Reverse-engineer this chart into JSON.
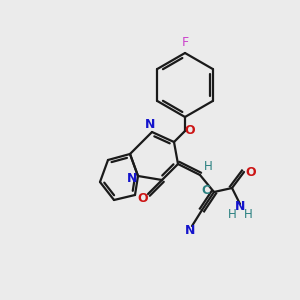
{
  "background_color": "#ebebeb",
  "bond_color": "#1a1a1a",
  "atom_colors": {
    "N": "#1414cc",
    "O": "#cc1414",
    "F": "#cc44cc",
    "C": "#2a8080",
    "H": "#2a8080"
  },
  "figsize": [
    3.0,
    3.0
  ],
  "dpi": 100,
  "lw": 1.6,
  "lw_thick": 1.6
}
